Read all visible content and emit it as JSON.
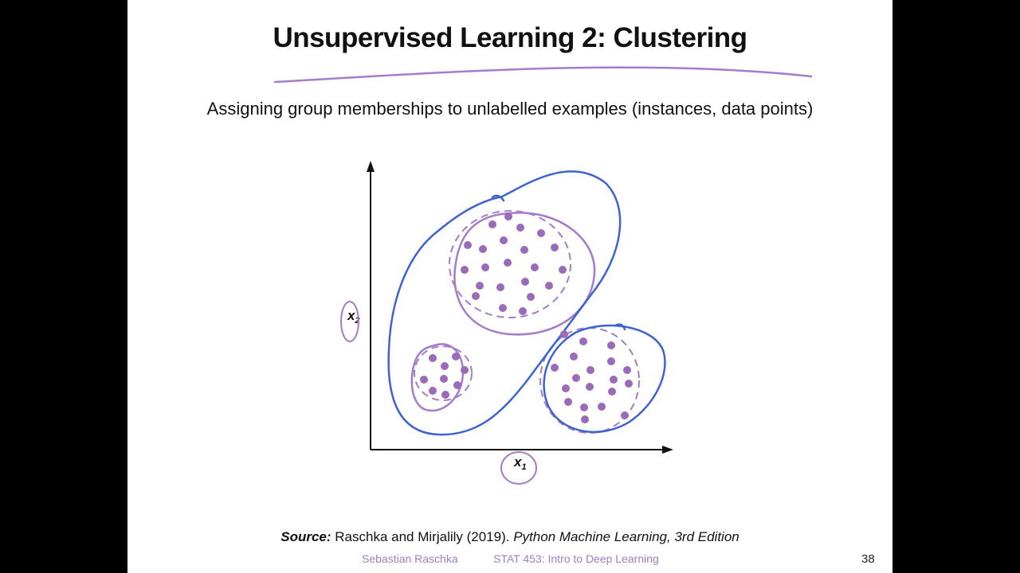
{
  "slide": {
    "title": "Unsupervised Learning 2: Clustering",
    "subtitle": "Assigning  group memberships to unlabelled examples (instances, data points)",
    "figure": {
      "x_label": "x",
      "x_sub": "1",
      "y_label": "x",
      "y_sub": "2"
    },
    "source": {
      "label": "Source:",
      "authors": "Raschka and Mirjalily (2019).",
      "book": "Python Machine Learning, 3rd Edition"
    },
    "footer": {
      "author": "Sebastian Raschka",
      "course": "STAT 453: Intro to Deep Learning",
      "page": "38"
    },
    "colors": {
      "points": "#9a6bb8",
      "cluster_outline": "#a47cc9",
      "annotation_blue": "#3d63d3",
      "annotation_purple": "#a47cc9"
    }
  }
}
